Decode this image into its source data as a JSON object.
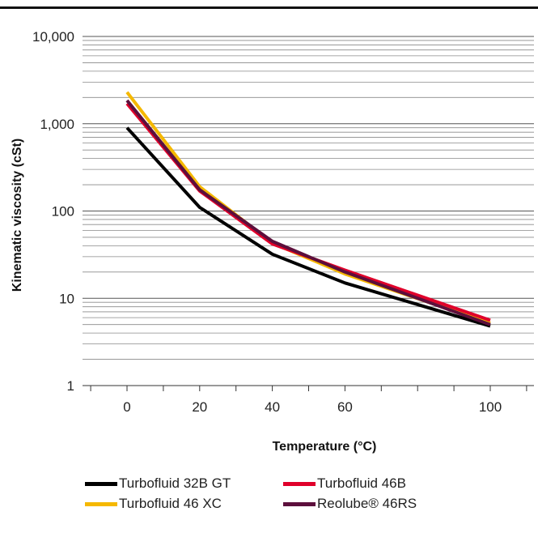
{
  "chart_data": {
    "type": "line",
    "title": "",
    "xlabel": "Temperature (°C)",
    "ylabel": "Kinematic viscosity (cSt)",
    "yscale": "log",
    "ylim": [
      1,
      10000
    ],
    "xlim": [
      -10,
      110
    ],
    "x_ticks": [
      0,
      20,
      40,
      60,
      100
    ],
    "x_tick_labels": [
      "0",
      "20",
      "40",
      "60",
      "100"
    ],
    "y_ticks": [
      1,
      10,
      100,
      1000,
      10000
    ],
    "y_tick_labels": [
      "1",
      "10",
      "100",
      "1,000",
      "10,000"
    ],
    "grid": "horizontal minor log gridlines",
    "legend_position": "bottom",
    "series": [
      {
        "name": "Turbofluid 32B GT",
        "color": "#000000",
        "x": [
          0,
          20,
          40,
          60,
          100
        ],
        "y": [
          900,
          110,
          32,
          15,
          4.8
        ]
      },
      {
        "name": "Turbofluid 46 XC",
        "color": "#F5B800",
        "x": [
          0,
          20,
          40,
          60,
          100
        ],
        "y": [
          2300,
          190,
          43,
          19,
          5.2
        ]
      },
      {
        "name": "Turbofluid 46B",
        "color": "#E0002A",
        "x": [
          0,
          20,
          40,
          60,
          100
        ],
        "y": [
          1700,
          170,
          42,
          21,
          5.6
        ]
      },
      {
        "name": "Reolube® 46RS",
        "color": "#5C0F3C",
        "x": [
          0,
          20,
          40,
          60,
          100
        ],
        "y": [
          1850,
          175,
          45,
          20,
          5.0
        ]
      }
    ]
  }
}
